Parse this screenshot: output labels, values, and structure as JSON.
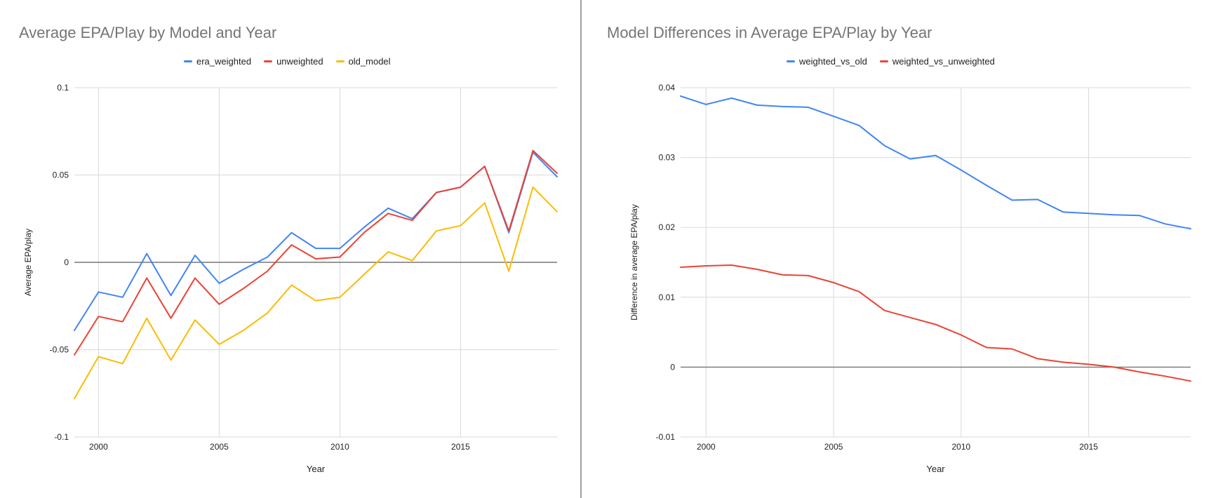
{
  "colors": {
    "blue": "#4285f4",
    "red": "#ea4335",
    "yellow": "#fbbc04",
    "grid": "#d9d9d9",
    "zero": "#757575"
  },
  "chart_data": [
    {
      "type": "line",
      "title": "Average EPA/Play by Model and Year",
      "xlabel": "Year",
      "ylabel": "Average EPA/play",
      "xlim": [
        1999,
        2019
      ],
      "ylim": [
        -0.1,
        0.1
      ],
      "xticks": [
        2000,
        2005,
        2010,
        2015
      ],
      "xtick_labels": [
        "2000",
        "2005",
        "2010",
        "2015"
      ],
      "yticks": [
        -0.1,
        -0.05,
        0,
        0.05,
        0.1
      ],
      "ytick_labels": [
        "-0.1",
        "-0.05",
        "0",
        "0.05",
        "0.1"
      ],
      "grid": true,
      "legend": "top",
      "x": [
        1999,
        2000,
        2001,
        2002,
        2003,
        2004,
        2005,
        2006,
        2007,
        2008,
        2009,
        2010,
        2011,
        2012,
        2013,
        2014,
        2015,
        2016,
        2017,
        2018,
        2019
      ],
      "series": [
        {
          "name": "era_weighted",
          "color": "#4285f4",
          "values": [
            -0.039,
            -0.017,
            -0.02,
            0.005,
            -0.019,
            0.004,
            -0.012,
            -0.004,
            0.003,
            0.017,
            0.008,
            0.008,
            0.02,
            0.031,
            0.025,
            0.04,
            0.043,
            0.055,
            0.017,
            0.063,
            0.049
          ]
        },
        {
          "name": "unweighted",
          "color": "#ea4335",
          "values": [
            -0.053,
            -0.031,
            -0.034,
            -0.009,
            -0.032,
            -0.009,
            -0.024,
            -0.015,
            -0.005,
            0.01,
            0.002,
            0.003,
            0.017,
            0.028,
            0.024,
            0.04,
            0.043,
            0.055,
            0.018,
            0.064,
            0.051
          ]
        },
        {
          "name": "old_model",
          "color": "#fbbc04",
          "values": [
            -0.078,
            -0.054,
            -0.058,
            -0.032,
            -0.056,
            -0.033,
            -0.047,
            -0.039,
            -0.029,
            -0.013,
            -0.022,
            -0.02,
            -0.007,
            0.006,
            0.001,
            0.018,
            0.021,
            0.034,
            -0.005,
            0.043,
            0.029
          ]
        }
      ]
    },
    {
      "type": "line",
      "title": "Model Differences in Average EPA/Play by Year",
      "xlabel": "Year",
      "ylabel": "Difference in average EPA/play",
      "xlim": [
        1999,
        2019
      ],
      "ylim": [
        -0.01,
        0.04
      ],
      "xticks": [
        2000,
        2005,
        2010,
        2015
      ],
      "xtick_labels": [
        "2000",
        "2005",
        "2010",
        "2015"
      ],
      "yticks": [
        -0.01,
        0,
        0.01,
        0.02,
        0.03,
        0.04
      ],
      "ytick_labels": [
        "-0.01",
        "0",
        "0.01",
        "0.02",
        "0.03",
        "0.04"
      ],
      "grid": true,
      "legend": "top",
      "x": [
        1999,
        2000,
        2001,
        2002,
        2003,
        2004,
        2005,
        2006,
        2007,
        2008,
        2009,
        2010,
        2011,
        2012,
        2013,
        2014,
        2015,
        2016,
        2017,
        2018,
        2019
      ],
      "series": [
        {
          "name": "weighted_vs_old",
          "color": "#4285f4",
          "values": [
            0.0388,
            0.0376,
            0.0385,
            0.0375,
            0.0373,
            0.0372,
            0.0359,
            0.0346,
            0.0317,
            0.0298,
            0.0303,
            0.0282,
            0.026,
            0.0239,
            0.024,
            0.0222,
            0.022,
            0.0218,
            0.0217,
            0.0205,
            0.0198
          ]
        },
        {
          "name": "weighted_vs_unweighted",
          "color": "#ea4335",
          "values": [
            0.0143,
            0.0145,
            0.0146,
            0.014,
            0.0132,
            0.0131,
            0.0121,
            0.0108,
            0.0081,
            0.0071,
            0.0061,
            0.0046,
            0.0028,
            0.0026,
            0.0012,
            0.0007,
            0.0004,
            0.0,
            -0.0007,
            -0.0013,
            -0.002
          ]
        }
      ]
    }
  ]
}
